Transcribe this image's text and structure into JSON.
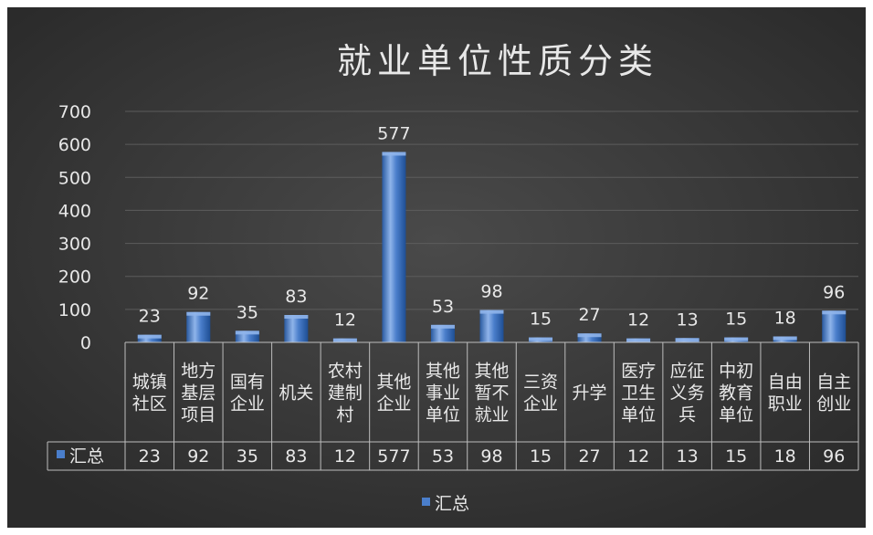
{
  "chart_data": {
    "type": "bar",
    "title": "就业单位性质分类",
    "categories": [
      [
        "城镇",
        "社区"
      ],
      [
        "地方",
        "基层",
        "项目"
      ],
      [
        "国有",
        "企业"
      ],
      [
        "机关"
      ],
      [
        "农村",
        "建制",
        "村"
      ],
      [
        "其他",
        "企业"
      ],
      [
        "其他",
        "事业",
        "单位"
      ],
      [
        "其他",
        "暂不",
        "就业"
      ],
      [
        "三资",
        "企业"
      ],
      [
        "升学"
      ],
      [
        "医疗",
        "卫生",
        "单位"
      ],
      [
        "应征",
        "义务",
        "兵"
      ],
      [
        "中初",
        "教育",
        "单位"
      ],
      [
        "自由",
        "职业"
      ],
      [
        "自主",
        "创业"
      ]
    ],
    "series": [
      {
        "name": "汇总",
        "values": [
          23,
          92,
          35,
          83,
          12,
          577,
          53,
          98,
          15,
          27,
          12,
          13,
          15,
          18,
          96
        ]
      }
    ],
    "ylim": [
      0,
      700
    ],
    "yticks": [
      0,
      100,
      200,
      300,
      400,
      500,
      600,
      700
    ],
    "grid": true,
    "data_labels": true,
    "legend_position": "bottom",
    "data_table": true,
    "colors": {
      "background": "#3a3a3a",
      "bar": "#4a7ecb",
      "bar_light": "#8fb4ea",
      "bar_dark": "#1e4e93",
      "text": "#e8e8e8",
      "grid": "#5c5c5c",
      "table_line": "#bdbdbd"
    }
  }
}
